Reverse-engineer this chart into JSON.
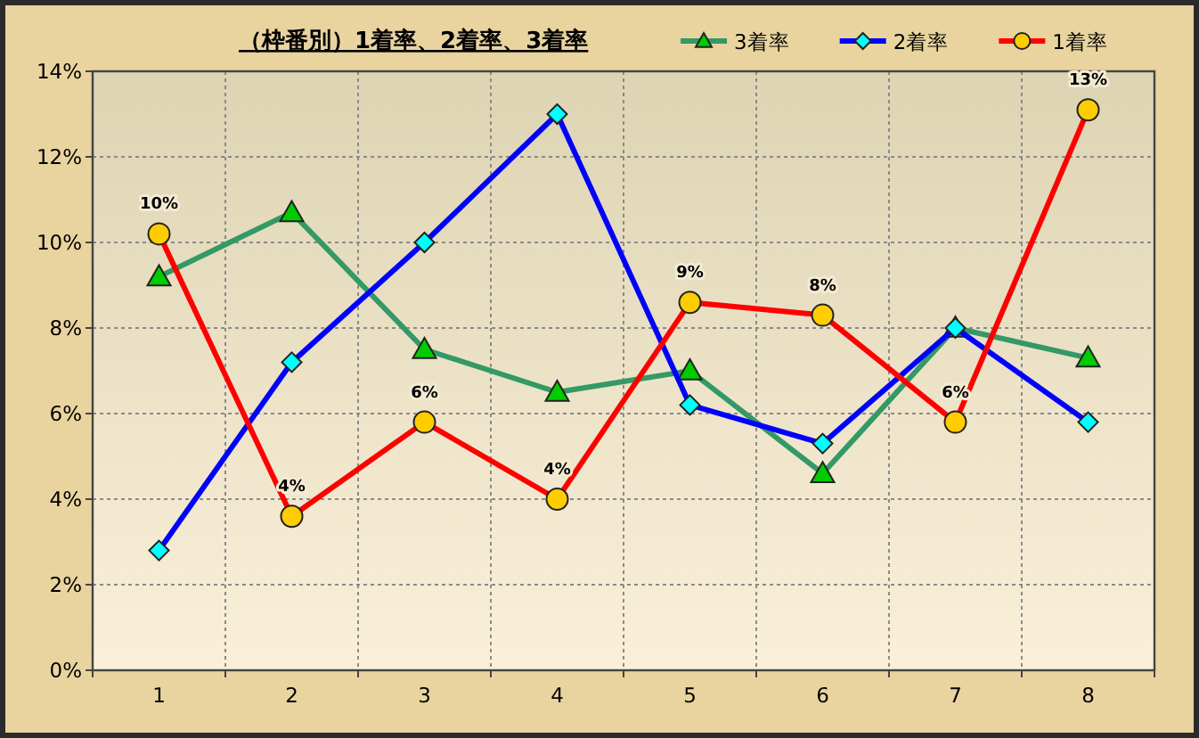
{
  "chart_data": {
    "type": "line",
    "title": "（枠番別）1着率、2着率、3着率",
    "categories": [
      "1",
      "2",
      "3",
      "4",
      "5",
      "6",
      "7",
      "8"
    ],
    "ylim": [
      0,
      14
    ],
    "yticks": [
      {
        "value": 0,
        "label": "0%"
      },
      {
        "value": 2,
        "label": "2%"
      },
      {
        "value": 4,
        "label": "4%"
      },
      {
        "value": 6,
        "label": "6%"
      },
      {
        "value": 8,
        "label": "8%"
      },
      {
        "value": 10,
        "label": "10%"
      },
      {
        "value": 12,
        "label": "12%"
      },
      {
        "value": 14,
        "label": "14%"
      }
    ],
    "grid": true,
    "legend": "top right",
    "line_style": "solid",
    "series": [
      {
        "name": "3着率",
        "color": "#339966",
        "marker": "triangle",
        "colors": [
          "#00cc00",
          "#00cc00",
          "#00cc00",
          "#00cc00",
          "#00cc00",
          "#00cc00",
          "#00cc00",
          "#00cc00"
        ],
        "values": [
          9.2,
          10.7,
          7.5,
          6.5,
          7.0,
          4.6,
          8.0,
          7.3
        ]
      },
      {
        "name": "2着率",
        "color": "#0000ff",
        "marker": "diamond",
        "colors": [
          "#00ffff",
          "#00ffff",
          "#00ffff",
          "#00ffff",
          "#00ffff",
          "#00ffff",
          "#00ffff",
          "#00ffff"
        ],
        "values": [
          2.8,
          7.2,
          10.0,
          13.0,
          6.2,
          5.3,
          8.0,
          5.8
        ]
      },
      {
        "name": "1着率",
        "color": "#ff0000",
        "marker": "circle",
        "colors": [
          "#ffcc00",
          "#ffcc00",
          "#ffcc00",
          "#ffcc00",
          "#ffcc00",
          "#ffcc00",
          "#ffcc00",
          "#ffcc00"
        ],
        "values": [
          10.2,
          3.6,
          5.8,
          4.0,
          8.6,
          8.3,
          5.8,
          13.1
        ],
        "value_labels": [
          "10%",
          "4%",
          "6%",
          "4%",
          "9%",
          "8%",
          "6%",
          "13%"
        ]
      }
    ]
  }
}
